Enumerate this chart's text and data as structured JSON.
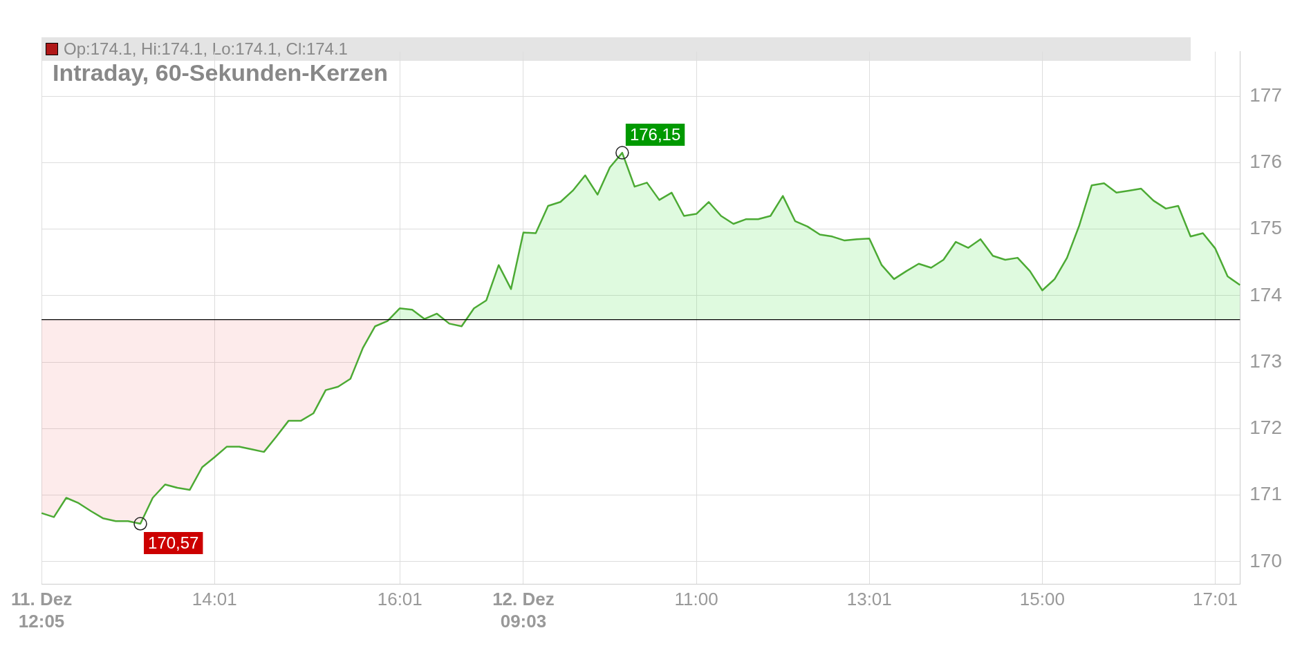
{
  "chart_data": {
    "type": "line",
    "title": "Intraday, 60-Sekunden-Kerzen",
    "annotations": [
      "Op:174.1, Hi:174.1, Lo:174.1, Cl:174.1"
    ],
    "categories": [
      "11. Dez\n12:05",
      null,
      null,
      null,
      null,
      null,
      null,
      null,
      null,
      null,
      null,
      null,
      null,
      null,
      "14:01",
      null,
      null,
      null,
      null,
      null,
      null,
      null,
      null,
      null,
      null,
      null,
      null,
      null,
      null,
      "16:01",
      null,
      null,
      null,
      null,
      null,
      null,
      null,
      null,
      null,
      "12. Dez\n09:03",
      null,
      null,
      null,
      null,
      null,
      null,
      null,
      null,
      null,
      null,
      null,
      null,
      null,
      "11:00",
      null,
      null,
      null,
      null,
      null,
      null,
      null,
      null,
      null,
      null,
      null,
      null,
      null,
      "13:01",
      null,
      null,
      null,
      null,
      null,
      null,
      null,
      null,
      null,
      null,
      null,
      null,
      null,
      "15:00",
      null,
      null,
      null,
      null,
      null,
      null,
      null,
      null,
      null,
      null,
      null,
      null,
      null,
      "17:01",
      null,
      null
    ],
    "series": [
      {
        "color": "#4caa34",
        "values": [
          170.73,
          170.67,
          170.96,
          170.88,
          170.76,
          170.65,
          170.61,
          170.61,
          170.57,
          170.96,
          171.16,
          171.11,
          171.08,
          171.42,
          171.57,
          171.73,
          171.73,
          171.69,
          171.65,
          171.88,
          172.12,
          172.12,
          172.23,
          172.58,
          172.63,
          172.75,
          173.21,
          173.54,
          173.62,
          173.81,
          173.79,
          173.65,
          173.73,
          173.58,
          173.54,
          173.81,
          173.93,
          174.46,
          174.1,
          174.95,
          174.94,
          175.35,
          175.41,
          175.58,
          175.81,
          175.52,
          175.93,
          176.15,
          175.64,
          175.7,
          175.44,
          175.55,
          175.2,
          175.23,
          175.41,
          175.2,
          175.08,
          175.15,
          175.15,
          175.2,
          175.5,
          175.12,
          175.04,
          174.92,
          174.89,
          174.83,
          174.85,
          174.86,
          174.46,
          174.25,
          174.37,
          174.48,
          174.42,
          174.54,
          174.81,
          174.72,
          174.85,
          174.6,
          174.54,
          174.57,
          174.37,
          174.08,
          174.25,
          174.57,
          175.06,
          175.66,
          175.69,
          175.55,
          175.58,
          175.61,
          175.43,
          175.31,
          175.35,
          174.89,
          174.94,
          174.71,
          174.29,
          174.16
        ],
        "value_labels": [
          null,
          null,
          null,
          null,
          null,
          null,
          null,
          null,
          "170,57",
          null,
          null,
          null,
          null,
          null,
          null,
          null,
          null,
          null,
          null,
          null,
          null,
          null,
          null,
          null,
          null,
          null,
          null,
          null,
          null,
          null,
          null,
          null,
          null,
          null,
          null,
          null,
          null,
          null,
          null,
          null,
          null,
          null,
          null,
          null,
          null,
          null,
          null,
          "176,15",
          null,
          null,
          null,
          null,
          null,
          null,
          null,
          null,
          null,
          null,
          null,
          null,
          null,
          null,
          null,
          null,
          null,
          null,
          null,
          null,
          null,
          null,
          null,
          null,
          null,
          null,
          null,
          null,
          null,
          null,
          null,
          null,
          null,
          null,
          null,
          null,
          null,
          null,
          null,
          null,
          null,
          null,
          null,
          null,
          null,
          null,
          null,
          null,
          null,
          null
        ]
      }
    ],
    "ref_lines": [
      {
        "axis": "y",
        "value": 173.64,
        "color": "#000000"
      }
    ],
    "ylim": [
      169.66,
      177.67
    ],
    "yticks": [
      170,
      171,
      172,
      173,
      174,
      175,
      176,
      177
    ],
    "grid": true,
    "legend": false,
    "marker": "none",
    "line_style": "solid"
  }
}
